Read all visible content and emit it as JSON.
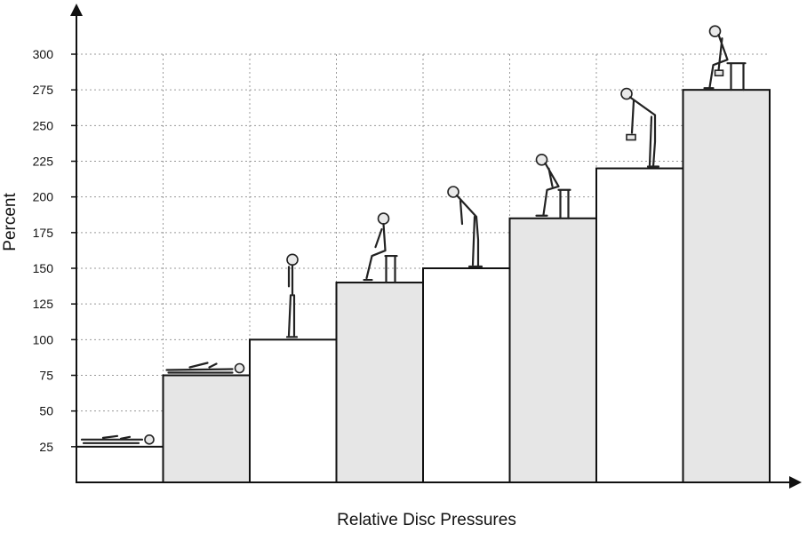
{
  "chart_data": {
    "type": "bar",
    "title": "",
    "xlabel": "Relative Disc Pressures",
    "ylabel": "Percent",
    "ylim": [
      0,
      300
    ],
    "yticks": [
      25,
      50,
      75,
      100,
      125,
      150,
      175,
      200,
      225,
      250,
      275,
      300
    ],
    "grid": true,
    "categories": [
      "lying on back",
      "lying on side",
      "standing",
      "sitting",
      "standing bent forward",
      "sitting bent forward",
      "bending forward lifting weights",
      "sitting bent forward lifting"
    ],
    "values": [
      25,
      75,
      100,
      140,
      150,
      185,
      220,
      275
    ],
    "bar_fills": [
      "#ffffff",
      "#e6e6e6",
      "#ffffff",
      "#e6e6e6",
      "#ffffff",
      "#e6e6e6",
      "#ffffff",
      "#e6e6e6"
    ],
    "icons": [
      "lying-supine-person-icon",
      "lying-side-person-icon",
      "standing-person-icon",
      "sitting-person-icon",
      "standing-bent-person-icon",
      "sitting-bent-person-icon",
      "lifting-weights-person-icon",
      "sitting-lifting-person-icon"
    ]
  }
}
